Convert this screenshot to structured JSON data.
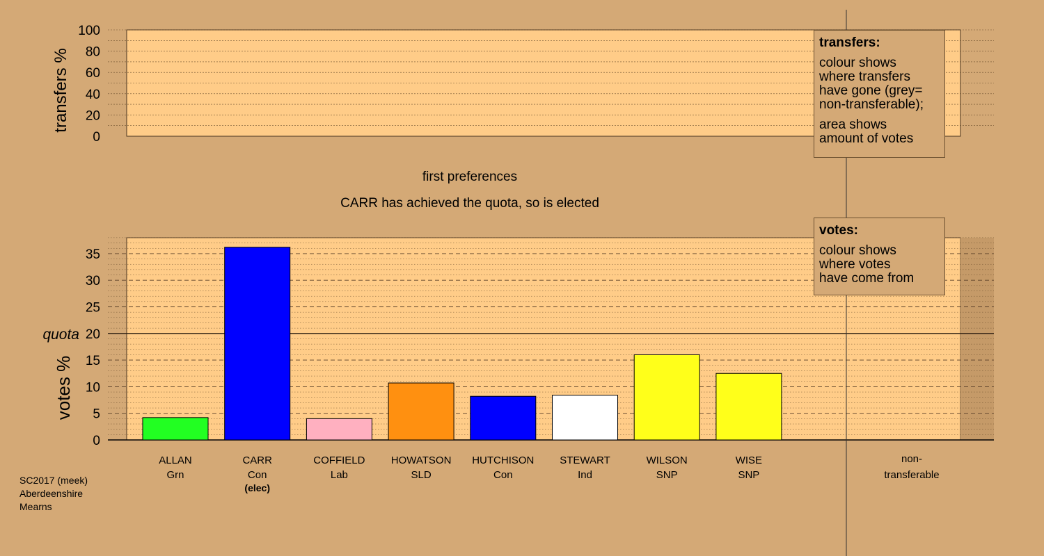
{
  "transfers_panel": {
    "ylabel": "transfers %",
    "y_ticks": [
      0,
      20,
      40,
      60,
      80,
      100
    ]
  },
  "header": {
    "stage": "first preferences",
    "message": "CARR has achieved the quota, so is elected"
  },
  "legend_transfers": {
    "title": "transfers:",
    "text1": "colour shows\nwhere transfers\nhave gone (grey=\nnon-transferable);",
    "text2": "area shows\namount of votes"
  },
  "legend_votes": {
    "title": "votes:",
    "text1": "colour shows\nwhere votes\nhave come from"
  },
  "footer": {
    "line1": "SC2017 (meek)",
    "line2": "Aberdeenshire",
    "line3": "Mearns"
  },
  "chart_data": {
    "type": "bar",
    "ylabel": "votes %",
    "quota_label": "quota",
    "quota": 20,
    "ylim": [
      0,
      38
    ],
    "y_ticks": [
      0,
      5,
      10,
      15,
      20,
      25,
      30,
      35
    ],
    "categories": [
      {
        "name": "ALLAN",
        "party": "Grn",
        "note": "",
        "value": 4.2,
        "color": "#22ff22"
      },
      {
        "name": "CARR",
        "party": "Con",
        "note": "(elec)",
        "value": 36.2,
        "color": "#0000ff"
      },
      {
        "name": "COFFIELD",
        "party": "Lab",
        "note": "",
        "value": 4.0,
        "color": "#ffb0c0"
      },
      {
        "name": "HOWATSON",
        "party": "SLD",
        "note": "",
        "value": 10.7,
        "color": "#ff9010"
      },
      {
        "name": "HUTCHISON",
        "party": "Con",
        "note": "",
        "value": 8.2,
        "color": "#0000ff"
      },
      {
        "name": "STEWART",
        "party": "Ind",
        "note": "",
        "value": 8.4,
        "color": "#ffffff"
      },
      {
        "name": "WILSON",
        "party": "SNP",
        "note": "",
        "value": 16.0,
        "color": "#ffff1a"
      },
      {
        "name": "WISE",
        "party": "SNP",
        "note": "",
        "value": 12.5,
        "color": "#ffff1a"
      }
    ],
    "nontransferable_label_1": "non-",
    "nontransferable_label_2": "transferable",
    "nontransferable_value": 0
  },
  "colors": {
    "background": "#d4a976",
    "panel": "#ffcc88",
    "shade": "#c59a68"
  }
}
